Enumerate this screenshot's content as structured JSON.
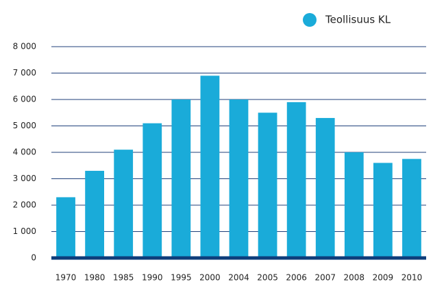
{
  "chart_data": {
    "type": "bar",
    "categories": [
      "1970",
      "1980",
      "1985",
      "1990",
      "1995",
      "2000",
      "2004",
      "2005",
      "2006",
      "2007",
      "2008",
      "2009",
      "2010"
    ],
    "series": [
      {
        "name": "Teollisuus KL",
        "color": "#1aabd9",
        "values": [
          2300,
          3300,
          4100,
          5100,
          6000,
          6900,
          6000,
          5500,
          5900,
          5300,
          4000,
          3600,
          3750
        ]
      }
    ],
    "ylim": [
      0,
      8000
    ],
    "yticks": [
      0,
      {
        "value": 1000,
        "label": "1 000"
      },
      {
        "value": 2000,
        "label": "2 000"
      },
      {
        "value": 3000,
        "label": "3 000"
      },
      {
        "value": 4000,
        "label": "4 000"
      },
      {
        "value": 5000,
        "label": "5 000"
      },
      {
        "value": 6000,
        "label": "6 000"
      },
      {
        "value": 7000,
        "label": "7 000"
      },
      {
        "value": 8000,
        "label": "8 000"
      }
    ],
    "grid": true,
    "legend": "top-right"
  }
}
